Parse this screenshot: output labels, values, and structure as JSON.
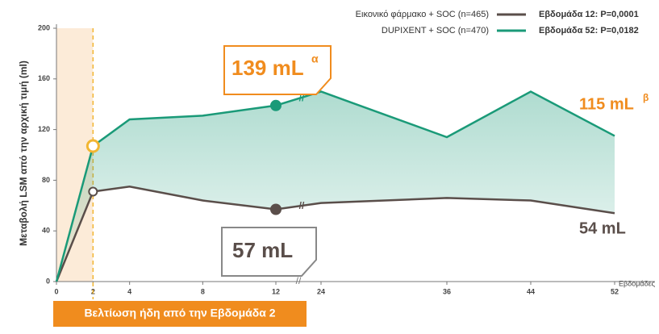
{
  "chart_data": {
    "type": "line",
    "y_label": "Μεταβολή LSM από την αρχική τιμή (ml)",
    "x_label": "Εβδομάδες",
    "x": [
      0,
      2,
      4,
      8,
      12,
      24,
      36,
      44,
      52
    ],
    "xlim": [
      0,
      52
    ],
    "xticks": [
      0,
      2,
      4,
      8,
      12,
      24,
      36,
      44,
      52
    ],
    "axis_break": [
      12,
      24
    ],
    "ylim": [
      0,
      200
    ],
    "yticks": [
      0,
      40,
      80,
      120,
      160,
      200
    ],
    "highlight_x": 2,
    "series": [
      {
        "name": "Εικονικό φάρμακο + SOC (n=465)",
        "color": "#5a4e4a",
        "values": [
          0,
          71,
          75,
          64,
          57,
          62,
          66,
          64,
          54
        ]
      },
      {
        "name": "DUPIXENT + SOC (n=470)",
        "color": "#1a9a78",
        "values": [
          0,
          107,
          128,
          131,
          139,
          150,
          114,
          150,
          115
        ]
      }
    ],
    "p_values": [
      "Εβδομάδα 12: P=0,0001",
      "Εβδομάδα 52: P=0,0182"
    ],
    "annotations": {
      "dup_12": {
        "text": "139 mL",
        "sup": "α"
      },
      "dup_52": {
        "text": "115 mL",
        "sup": "β"
      },
      "pla_12": {
        "text": "57 mL"
      },
      "pla_52": {
        "text": "54 mL"
      }
    },
    "banner": "Βελτίωση ήδη από την Εβδομάδα 2"
  }
}
